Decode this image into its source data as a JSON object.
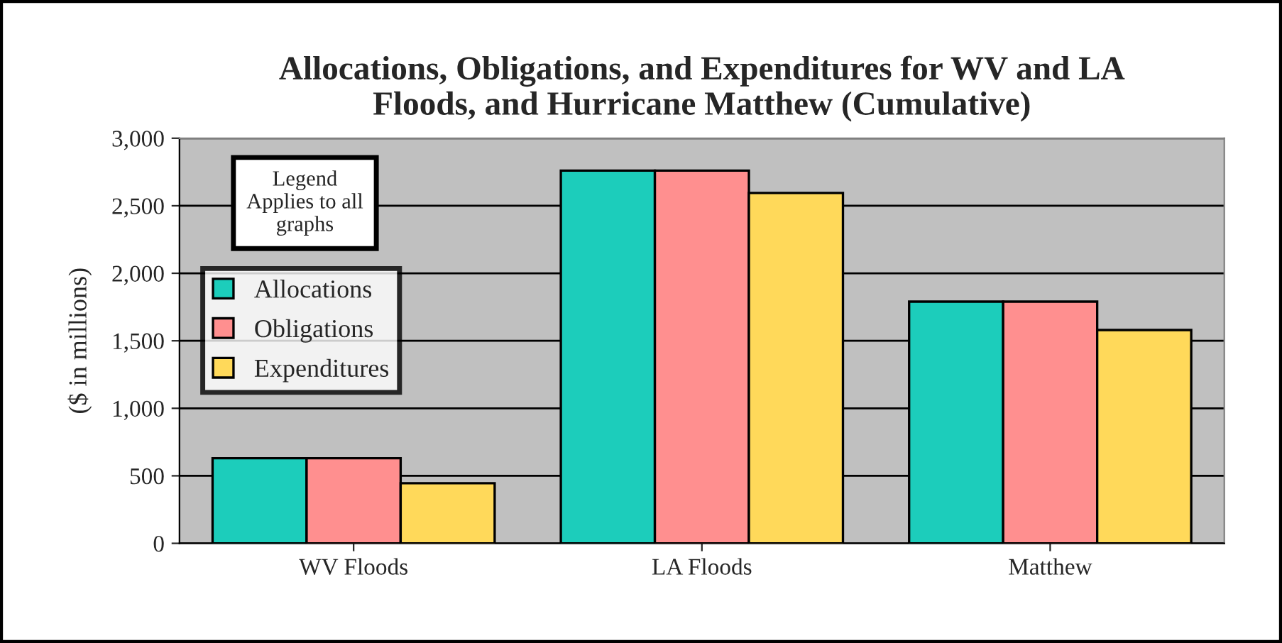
{
  "chart_data": {
    "type": "bar",
    "title": "Allocations, Obligations, and Expenditures for WV and LA\nFloods, and Hurricane Matthew (Cumulative)",
    "ylabel": "($ in millions)",
    "categories": [
      "WV Floods",
      "LA Floods",
      "Matthew"
    ],
    "series": [
      {
        "name": "Allocations",
        "color": "#1ccdbb",
        "values": [
          630,
          2760,
          1790
        ]
      },
      {
        "name": "Obligations",
        "color": "#ff8f8f",
        "values": [
          630,
          2760,
          1790
        ]
      },
      {
        "name": "Expenditures",
        "color": "#ffd95a",
        "values": [
          445,
          2595,
          1580
        ]
      }
    ],
    "ylim": [
      0,
      3000
    ],
    "yticks": [
      0,
      {
        "value": 500,
        "label": "500"
      },
      {
        "value": 1000,
        "label": "1,000"
      },
      {
        "value": 1500,
        "label": "1,500"
      },
      {
        "value": 2000,
        "label": "2,000"
      },
      {
        "value": 2500,
        "label": "2,500"
      },
      {
        "value": 3000,
        "label": "3,000"
      }
    ],
    "grid": "y",
    "legend": "top left",
    "annotations": [
      "Legend\nApplies to all\ngraphs"
    ]
  }
}
